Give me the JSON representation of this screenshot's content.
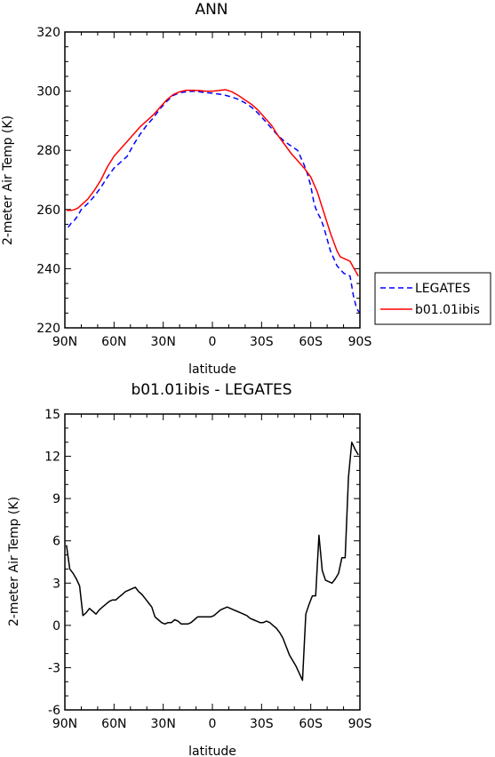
{
  "chart_data": [
    {
      "type": "line",
      "title": "ANN",
      "xlabel": "latitude",
      "ylabel": "2-meter Air Temp (K)",
      "xlim": [
        90,
        -90
      ],
      "ylim": [
        220,
        320
      ],
      "xticks": [
        90,
        60,
        30,
        0,
        -30,
        -60,
        -90
      ],
      "xtick_labels": [
        "90N",
        "60N",
        "30N",
        "0",
        "30S",
        "60S",
        "90S"
      ],
      "yticks": [
        220,
        240,
        260,
        280,
        300,
        320
      ],
      "ytick_labels": [
        "220",
        "240",
        "260",
        "280",
        "300",
        "320"
      ],
      "grid": false,
      "legend_position": "right",
      "series": [
        {
          "name": "LEGATES",
          "color": "#0000ff",
          "style": "dashed",
          "x": [
            88,
            86,
            84,
            82,
            80,
            78,
            76,
            72,
            68,
            64,
            60,
            56,
            52,
            48,
            44,
            40,
            36,
            32,
            28,
            24,
            20,
            16,
            12,
            8,
            4,
            0,
            -4,
            -8,
            -12,
            -16,
            -20,
            -24,
            -28,
            -32,
            -36,
            -40,
            -44,
            -48,
            -52,
            -56,
            -58,
            -60,
            -62,
            -64,
            -66,
            -68,
            -72,
            -76,
            -80,
            -84,
            -86,
            -88,
            -90
          ],
          "y": [
            254,
            255.5,
            256.5,
            258,
            260,
            261,
            262,
            264.5,
            267.5,
            271,
            274,
            276,
            278,
            282,
            285.5,
            288.5,
            291,
            294,
            296.5,
            298.5,
            299.5,
            299.8,
            300,
            299.8,
            299.5,
            299.3,
            299,
            298.6,
            298,
            297.2,
            296,
            294.5,
            292.5,
            290,
            287.5,
            285,
            283,
            281.5,
            280,
            275,
            272,
            268,
            262,
            259,
            257,
            254,
            246,
            241,
            238.5,
            237.5,
            231,
            226.5,
            225
          ]
        },
        {
          "name": "b01.01ibis",
          "color": "#ff0000",
          "style": "solid",
          "x": [
            89,
            86,
            84,
            82,
            80,
            76,
            72,
            68,
            64,
            60,
            56,
            52,
            48,
            44,
            40,
            36,
            32,
            28,
            24,
            20,
            16,
            12,
            8,
            4,
            0,
            -4,
            -8,
            -12,
            -16,
            -20,
            -24,
            -28,
            -32,
            -36,
            -40,
            -44,
            -48,
            -52,
            -56,
            -60,
            -64,
            -68,
            -72,
            -76,
            -78,
            -80,
            -84,
            -86,
            -88,
            -89
          ],
          "y": [
            259.7,
            259.7,
            260,
            260.5,
            261.5,
            263.5,
            266.5,
            270,
            274.5,
            278,
            280.5,
            283,
            285.5,
            288,
            290,
            292,
            294.5,
            297,
            298.8,
            299.8,
            300.3,
            300.3,
            300.2,
            300,
            300,
            300.2,
            300.5,
            299.8,
            298.5,
            297,
            295.5,
            293.5,
            291,
            288.5,
            285,
            282,
            279,
            276.5,
            274,
            271,
            266,
            259,
            252,
            246,
            244,
            243.5,
            242.5,
            240.5,
            238.5,
            237.5
          ]
        }
      ]
    },
    {
      "type": "line",
      "title": "b01.01ibis - LEGATES",
      "xlabel": "latitude",
      "ylabel": "2-meter Air Temp (K)",
      "xlim": [
        90,
        -90
      ],
      "ylim": [
        -6,
        15
      ],
      "xticks": [
        90,
        60,
        30,
        0,
        -30,
        -60,
        -90
      ],
      "xtick_labels": [
        "90N",
        "60N",
        "30N",
        "0",
        "30S",
        "60S",
        "90S"
      ],
      "yticks": [
        -6,
        -3,
        0,
        3,
        6,
        9,
        12,
        15
      ],
      "ytick_labels": [
        "-6",
        "-3",
        "0",
        "3",
        "6",
        "9",
        "12",
        "15"
      ],
      "grid": false,
      "series": [
        {
          "color": "#000000",
          "style": "solid",
          "x": [
            89,
            87,
            85,
            83,
            81,
            79,
            77,
            75,
            73,
            71,
            69,
            67,
            65,
            63,
            61,
            59,
            57,
            55,
            53,
            51,
            49,
            47,
            45,
            43,
            41,
            39,
            37,
            35,
            33,
            31,
            29,
            27,
            25,
            23,
            21,
            19,
            17,
            15,
            13,
            11,
            9,
            7,
            5,
            3,
            1,
            -1,
            -3,
            -5,
            -7,
            -9,
            -11,
            -13,
            -15,
            -17,
            -19,
            -21,
            -23,
            -25,
            -27,
            -29,
            -31,
            -33,
            -35,
            -37,
            -39,
            -41,
            -43,
            -45,
            -47,
            -49,
            -51,
            -53,
            -55,
            -57,
            -59,
            -61,
            -63,
            -65,
            -67,
            -69,
            -71,
            -73,
            -75,
            -77,
            -79,
            -81,
            -83,
            -85,
            -87,
            -89
          ],
          "y": [
            5.7,
            4.0,
            3.7,
            3.3,
            2.8,
            0.7,
            0.9,
            1.2,
            1.0,
            0.8,
            1.1,
            1.3,
            1.5,
            1.7,
            1.8,
            1.8,
            2.0,
            2.2,
            2.4,
            2.5,
            2.6,
            2.7,
            2.4,
            2.2,
            1.9,
            1.6,
            1.3,
            0.6,
            0.4,
            0.2,
            0.1,
            0.2,
            0.2,
            0.4,
            0.3,
            0.1,
            0.1,
            0.1,
            0.2,
            0.4,
            0.6,
            0.6,
            0.6,
            0.6,
            0.6,
            0.7,
            0.9,
            1.1,
            1.2,
            1.3,
            1.2,
            1.1,
            1.0,
            0.9,
            0.8,
            0.7,
            0.5,
            0.4,
            0.3,
            0.2,
            0.2,
            0.3,
            0.2,
            0.0,
            -0.2,
            -0.5,
            -0.9,
            -1.5,
            -2.1,
            -2.5,
            -2.9,
            -3.4,
            -3.9,
            0.8,
            1.5,
            2.1,
            2.1,
            6.4,
            3.9,
            3.2,
            3.1,
            3.0,
            3.3,
            3.7,
            4.8,
            4.8,
            10.5,
            13.0,
            12.5,
            12.1
          ]
        }
      ]
    }
  ]
}
